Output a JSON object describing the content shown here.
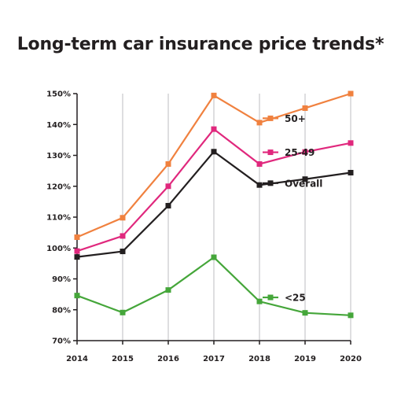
{
  "chart_data": {
    "type": "line",
    "title": "Long-term car insurance price trends*",
    "xlabel": "",
    "ylabel": "",
    "x": [
      "2014",
      "2015",
      "2016",
      "2017",
      "2018",
      "2019",
      "2020"
    ],
    "yticks": [
      "70%",
      "80%",
      "90%",
      "100%",
      "110%",
      "120%",
      "130%",
      "140%",
      "150%"
    ],
    "ylim": [
      70,
      150
    ],
    "grid": {
      "vertical": true,
      "horizontal": false
    },
    "legend": "inline-labels",
    "series": [
      {
        "name": "50+",
        "color": "#f0813f",
        "values": [
          103.5,
          109.8,
          127.2,
          149.4,
          140.6,
          145.3,
          150.0
        ]
      },
      {
        "name": "25-49",
        "color": "#e0287d",
        "values": [
          99.0,
          103.9,
          120.0,
          138.5,
          127.2,
          131.1,
          134.0
        ]
      },
      {
        "name": "Overall",
        "color": "#231f20",
        "values": [
          97.1,
          98.9,
          113.7,
          131.2,
          120.4,
          122.3,
          124.4
        ]
      },
      {
        "name": "<25",
        "color": "#45a63a",
        "values": [
          84.6,
          79.1,
          86.4,
          97.0,
          82.7,
          79.0,
          78.2
        ]
      }
    ],
    "legend_anchors": [
      {
        "series": 0,
        "y": 142
      },
      {
        "series": 1,
        "y": 131
      },
      {
        "series": 2,
        "y": 121
      },
      {
        "series": 3,
        "y": 84
      }
    ]
  }
}
